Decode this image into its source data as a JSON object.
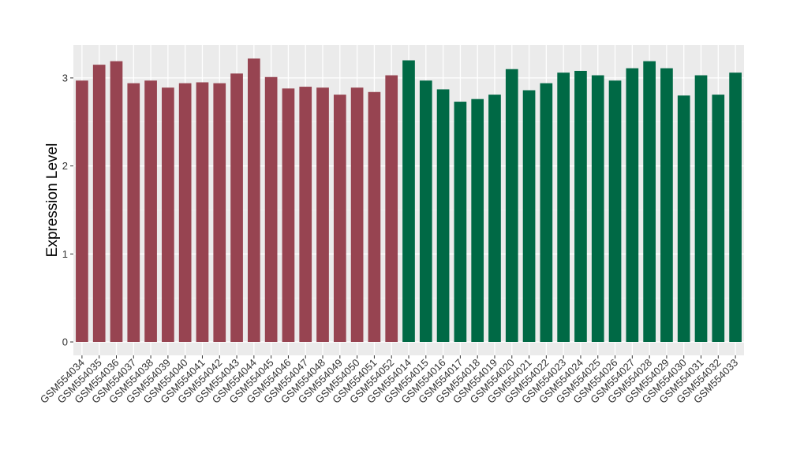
{
  "chart_data": {
    "type": "bar",
    "title": "",
    "xlabel": "",
    "ylabel": "Expression Level",
    "ylim": [
      0,
      3.3
    ],
    "yticks": [
      0,
      1,
      2,
      3
    ],
    "grid": true,
    "legend": "none",
    "group_colors": [
      "#974451",
      "#006945"
    ],
    "categories": [
      "GSM554034",
      "GSM554035",
      "GSM554036",
      "GSM554037",
      "GSM554038",
      "GSM554039",
      "GSM554040",
      "GSM554041",
      "GSM554042",
      "GSM554043",
      "GSM554044",
      "GSM554045",
      "GSM554046",
      "GSM554047",
      "GSM554048",
      "GSM554049",
      "GSM554050",
      "GSM554051",
      "GSM554052",
      "GSM554014",
      "GSM554015",
      "GSM554016",
      "GSM554017",
      "GSM554018",
      "GSM554019",
      "GSM554020",
      "GSM554021",
      "GSM554022",
      "GSM554023",
      "GSM554024",
      "GSM554025",
      "GSM554026",
      "GSM554027",
      "GSM554028",
      "GSM554029",
      "GSM554030",
      "GSM554031",
      "GSM554032",
      "GSM554033"
    ],
    "values": [
      2.97,
      3.15,
      3.19,
      2.94,
      2.97,
      2.89,
      2.94,
      2.95,
      2.94,
      3.05,
      3.22,
      3.01,
      2.88,
      2.9,
      2.89,
      2.81,
      2.89,
      2.84,
      3.03,
      3.2,
      2.97,
      2.87,
      2.73,
      2.76,
      2.81,
      3.1,
      2.86,
      2.94,
      3.06,
      3.08,
      3.03,
      2.97,
      3.11,
      3.19,
      3.11,
      2.8,
      3.03,
      2.81,
      3.06
    ],
    "groups": [
      0,
      0,
      0,
      0,
      0,
      0,
      0,
      0,
      0,
      0,
      0,
      0,
      0,
      0,
      0,
      0,
      0,
      0,
      0,
      1,
      1,
      1,
      1,
      1,
      1,
      1,
      1,
      1,
      1,
      1,
      1,
      1,
      1,
      1,
      1,
      1,
      1,
      1,
      1
    ]
  }
}
